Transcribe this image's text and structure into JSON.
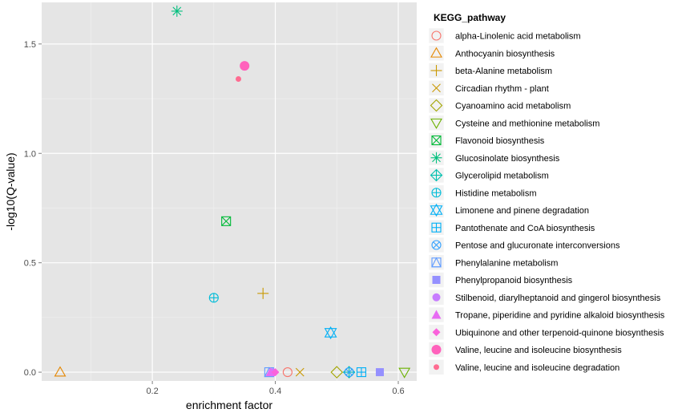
{
  "chart_data": {
    "type": "scatter",
    "xlabel": "enrichment factor",
    "ylabel": "-log10(Q-value)",
    "xlim": [
      0.02,
      0.63
    ],
    "ylim": [
      -0.04,
      1.69
    ],
    "x_ticks": [
      0.2,
      0.4,
      0.6
    ],
    "x_tick_labels": [
      "0.2",
      "0.4",
      "0.6"
    ],
    "y_ticks": [
      0.0,
      0.5,
      1.0,
      1.5
    ],
    "y_tick_labels": [
      "0.0",
      "0.5",
      "1.0",
      "1.5"
    ],
    "grid": true,
    "background": "#e5e5e5",
    "legend_title": "KEGG_pathway",
    "legend_position": "right",
    "series": [
      {
        "name": "alpha-Linolenic acid metabolism",
        "shape": "circle-open",
        "color": "#f8766d",
        "x": 0.42,
        "y": 0.0
      },
      {
        "name": "Anthocyanin biosynthesis",
        "shape": "triangle-open",
        "color": "#e58700",
        "x": 0.05,
        "y": 0.0
      },
      {
        "name": "beta-Alanine metabolism",
        "shape": "plus",
        "color": "#c99800",
        "x": 0.38,
        "y": 0.36
      },
      {
        "name": "Circadian rhythm - plant",
        "shape": "cross",
        "color": "#c99800",
        "x": 0.44,
        "y": 0.0
      },
      {
        "name": "Cyanoamino acid metabolism",
        "shape": "diamond-open",
        "color": "#a3a500",
        "x": 0.5,
        "y": 0.0
      },
      {
        "name": "Cysteine and methionine metabolism",
        "shape": "triangle-down-open",
        "color": "#6bb100",
        "x": 0.61,
        "y": 0.0
      },
      {
        "name": "Flavonoid biosynthesis",
        "shape": "square-cross",
        "color": "#00ba38",
        "x": 0.32,
        "y": 0.69
      },
      {
        "name": "Glucosinolate biosynthesis",
        "shape": "asterisk",
        "color": "#00bf7d",
        "x": 0.24,
        "y": 1.65
      },
      {
        "name": "Glycerolipid metabolism",
        "shape": "diamond-plus",
        "color": "#00c0af",
        "x": 0.52,
        "y": 0.0
      },
      {
        "name": "Histidine metabolism",
        "shape": "circle-plus",
        "color": "#00bcd8",
        "x": 0.3,
        "y": 0.34
      },
      {
        "name": "Limonene and pinene degradation",
        "shape": "star-of-david",
        "color": "#00b0f6",
        "x": 0.49,
        "y": 0.18
      },
      {
        "name": "Pantothenate and CoA biosynthesis",
        "shape": "square-plus",
        "color": "#00b0f6",
        "x": 0.54,
        "y": 0.0
      },
      {
        "name": "Pentose and glucuronate interconversions",
        "shape": "circle-cross",
        "color": "#35a2ff",
        "x": 0.52,
        "y": 0.0
      },
      {
        "name": "Phenylalanine metabolism",
        "shape": "square-triangle",
        "color": "#619cff",
        "x": 0.39,
        "y": 0.0
      },
      {
        "name": "Phenylpropanoid biosynthesis",
        "shape": "square-filled",
        "color": "#9590ff",
        "x": 0.57,
        "y": 0.0
      },
      {
        "name": "Stilbenoid, diarylheptanoid and gingerol biosynthesis",
        "shape": "circle-filled",
        "color": "#c77cff",
        "x": 0.395,
        "y": 0.0
      },
      {
        "name": "Tropane, piperidine and pyridine alkaloid biosynthesis",
        "shape": "triangle-filled",
        "color": "#e76bf3",
        "x": 0.392,
        "y": 0.0
      },
      {
        "name": "Ubiquinone and other terpenoid-quinone biosynthesis",
        "shape": "diamond-filled",
        "color": "#fa62db",
        "x": 0.4,
        "y": 0.0
      },
      {
        "name": "Valine, leucine and isoleucine biosynthesis",
        "shape": "circle-filled-large",
        "color": "#ff62bc",
        "x": 0.35,
        "y": 1.4
      },
      {
        "name": "Valine, leucine and isoleucine degradation",
        "shape": "circle-filled-small",
        "color": "#ff6c91",
        "x": 0.34,
        "y": 1.34
      }
    ]
  }
}
